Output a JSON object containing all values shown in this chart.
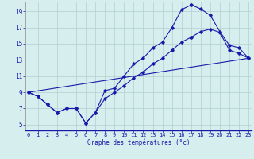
{
  "xlabel": "Graphe des températures (°c)",
  "x_ticks": [
    0,
    1,
    2,
    3,
    4,
    5,
    6,
    7,
    8,
    9,
    10,
    11,
    12,
    13,
    14,
    15,
    16,
    17,
    18,
    19,
    20,
    21,
    22,
    23
  ],
  "y_ticks": [
    5,
    7,
    9,
    11,
    13,
    15,
    17,
    19
  ],
  "xlim": [
    -0.3,
    23.3
  ],
  "ylim": [
    4.3,
    20.2
  ],
  "background_color": "#d6eeee",
  "grid_color": "#b0d0d0",
  "line_color": "#1a1aaa",
  "line1_x": [
    0,
    1,
    2,
    3,
    4,
    5,
    6,
    7,
    8,
    9,
    10,
    11,
    12,
    13,
    14,
    15,
    16,
    17,
    18,
    19,
    20,
    21,
    22,
    23
  ],
  "line1_y": [
    9.0,
    8.5,
    7.5,
    6.5,
    7.0,
    7.0,
    5.2,
    6.5,
    9.2,
    9.5,
    11.0,
    12.5,
    13.2,
    14.5,
    15.2,
    17.0,
    19.2,
    19.8,
    19.3,
    18.5,
    16.5,
    14.8,
    14.5,
    13.2
  ],
  "line2_x": [
    0,
    1,
    2,
    3,
    4,
    5,
    6,
    7,
    8,
    9,
    10,
    11,
    12,
    13,
    14,
    15,
    16,
    17,
    18,
    19,
    20,
    21,
    22,
    23
  ],
  "line2_y": [
    9.0,
    8.5,
    7.5,
    6.5,
    7.0,
    7.0,
    5.2,
    6.5,
    8.2,
    9.0,
    9.8,
    10.8,
    11.5,
    12.5,
    13.2,
    14.2,
    15.2,
    15.8,
    16.5,
    16.8,
    16.4,
    14.2,
    13.8,
    13.2
  ],
  "line3_x": [
    0,
    23
  ],
  "line3_y": [
    9.0,
    13.2
  ],
  "tick_fontsize": 5.0,
  "xlabel_fontsize": 5.5,
  "xlabel_color": "#1a1aaa"
}
